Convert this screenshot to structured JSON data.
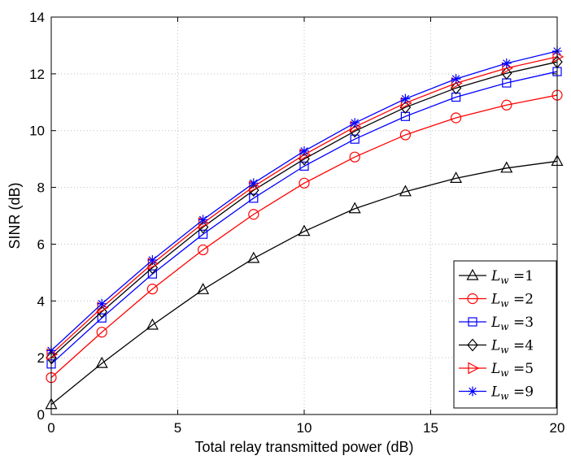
{
  "chart_data": {
    "type": "line",
    "xlabel": "Total relay transmitted power (dB)",
    "ylabel": "SINR (dB)",
    "xlim": [
      0,
      20
    ],
    "ylim": [
      0,
      14
    ],
    "xticks": [
      0,
      5,
      10,
      15,
      20
    ],
    "yticks": [
      0,
      2,
      4,
      6,
      8,
      10,
      12,
      14
    ],
    "grid": true,
    "legend_position": "bottom-right",
    "x": [
      0,
      2,
      4,
      6,
      8,
      10,
      12,
      14,
      16,
      18,
      20
    ],
    "series": [
      {
        "name": "L_w =1",
        "label_main": "L",
        "label_sub": "w",
        "label_value": " =1",
        "color": "#000000",
        "marker": "triangle-up",
        "values": [
          0.35,
          1.8,
          3.15,
          4.4,
          5.5,
          6.45,
          7.25,
          7.85,
          8.32,
          8.68,
          8.92
        ]
      },
      {
        "name": "L_w =2",
        "label_main": "L",
        "label_sub": "w",
        "label_value": " =2",
        "color": "#ff0000",
        "marker": "circle",
        "values": [
          1.3,
          2.9,
          4.42,
          5.8,
          7.05,
          8.15,
          9.07,
          9.85,
          10.45,
          10.9,
          11.25
        ]
      },
      {
        "name": "L_w =3",
        "label_main": "L",
        "label_sub": "w",
        "label_value": " =3",
        "color": "#0000ff",
        "marker": "square",
        "values": [
          1.78,
          3.4,
          4.95,
          6.35,
          7.62,
          8.75,
          9.7,
          10.5,
          11.18,
          11.68,
          12.08
        ]
      },
      {
        "name": "L_w =4",
        "label_main": "L",
        "label_sub": "w",
        "label_value": " =4",
        "color": "#000000",
        "marker": "diamond",
        "values": [
          2.0,
          3.62,
          5.17,
          6.6,
          7.9,
          9.0,
          9.98,
          10.82,
          11.5,
          12.02,
          12.42
        ]
      },
      {
        "name": "L_w =5",
        "label_main": "L",
        "label_sub": "w",
        "label_value": " =5",
        "color": "#ff0000",
        "marker": "triangle-right",
        "values": [
          2.12,
          3.76,
          5.31,
          6.74,
          8.03,
          9.15,
          10.13,
          10.97,
          11.67,
          12.2,
          12.6
        ]
      },
      {
        "name": "L_w =9",
        "label_main": "L",
        "label_sub": "w",
        "label_value": " =9",
        "color": "#0000ff",
        "marker": "star",
        "values": [
          2.25,
          3.9,
          5.44,
          6.86,
          8.15,
          9.28,
          10.27,
          11.12,
          11.82,
          12.37,
          12.8
        ]
      }
    ]
  }
}
